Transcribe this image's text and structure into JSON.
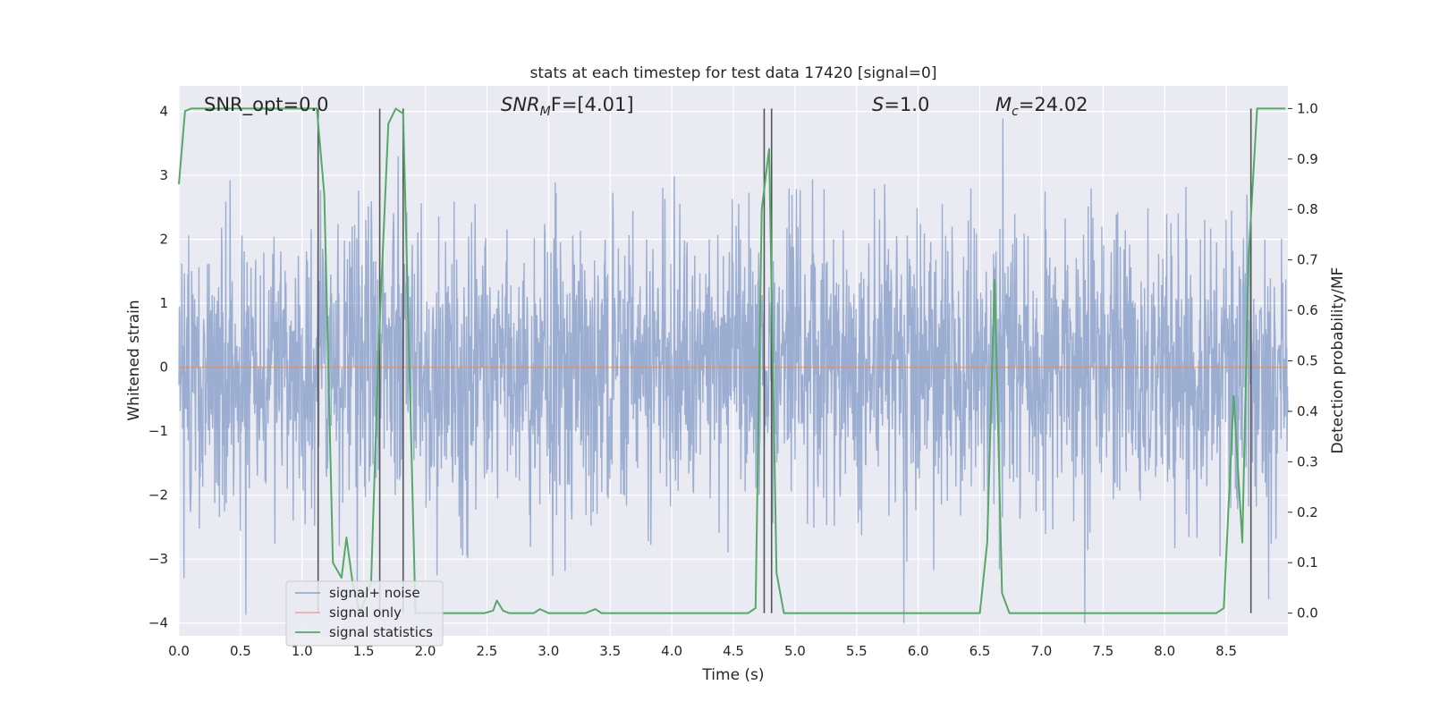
{
  "chart_data": {
    "type": "line",
    "title": "stats at each timestep for test data 17420 [signal=0]",
    "xlabel": "Time (s)",
    "ylabel_left": "Whitened strain",
    "ylabel_right": "Detection probability/MF",
    "xlim": [
      0.0,
      9.0
    ],
    "ylim_left": [
      -4.2,
      4.4
    ],
    "ylim_right": [
      -0.045,
      1.045
    ],
    "x_ticks": [
      "0.0",
      "0.5",
      "1.0",
      "1.5",
      "2.0",
      "2.5",
      "3.0",
      "3.5",
      "4.0",
      "4.5",
      "5.0",
      "5.5",
      "6.0",
      "6.5",
      "7.0",
      "7.5",
      "8.0",
      "8.5"
    ],
    "y_left_ticks": [
      "4",
      "3",
      "2",
      "1",
      "0",
      "−1",
      "−2",
      "−3",
      "−4"
    ],
    "y_right_ticks": [
      "1.0",
      "0.9",
      "0.8",
      "0.7",
      "0.6",
      "0.5",
      "0.4",
      "0.3",
      "0.2",
      "0.1",
      "0.0"
    ],
    "grid": true,
    "legend_position": "lower-left",
    "colors": {
      "background": "#eaeaf2",
      "grid": "#ffffff",
      "signal_noise": "#4c72b0",
      "signal_only": "#dd8452",
      "signal_statistics": "#55a868",
      "vertical_markers": "#555555"
    },
    "annotations": {
      "snr_opt": "SNR_opt=0.0",
      "snr_mf_prefix": "SNR",
      "snr_mf_sub": "M",
      "snr_mf_suffix": "F=[4.01]",
      "s_prefix": "S",
      "s_suffix": "=1.0",
      "mc_prefix": "M",
      "mc_sub": "c",
      "mc_suffix": "=24.02"
    },
    "series": [
      {
        "name": "signal+ noise",
        "axis": "left",
        "style": "dense noise, roughly ±1.5 band with spikes to ±4"
      },
      {
        "name": "signal only",
        "axis": "left",
        "values": "flat at 0"
      },
      {
        "name": "signal statistics",
        "axis": "right",
        "x": [
          0.0,
          0.05,
          0.1,
          1.12,
          1.18,
          1.25,
          1.32,
          1.36,
          1.41,
          1.47,
          1.56,
          1.62,
          1.7,
          1.76,
          1.82,
          1.92,
          2.48,
          2.55,
          2.58,
          2.63,
          2.68,
          2.88,
          2.93,
          3.0,
          3.3,
          3.38,
          3.43,
          3.48,
          4.62,
          4.68,
          4.73,
          4.79,
          4.85,
          4.91,
          4.97,
          6.5,
          6.56,
          6.62,
          6.68,
          6.74,
          6.8,
          8.42,
          8.48,
          8.56,
          8.63,
          8.68,
          8.75,
          8.8,
          8.98
        ],
        "values": [
          0.85,
          0.995,
          1.0,
          1.0,
          0.83,
          0.1,
          0.07,
          0.15,
          0.06,
          0.0,
          0.06,
          0.52,
          0.97,
          1.0,
          0.99,
          0.0,
          0.0,
          0.005,
          0.025,
          0.005,
          0.0,
          0.0,
          0.008,
          0.0,
          0.0,
          0.008,
          0.0,
          0.0,
          0.0,
          0.01,
          0.8,
          0.92,
          0.08,
          0.0,
          0.0,
          0.0,
          0.14,
          0.66,
          0.04,
          0.0,
          0.0,
          0.0,
          0.01,
          0.43,
          0.14,
          0.7,
          1.0,
          1.0,
          1.0
        ]
      }
    ],
    "vertical_lines_x": [
      1.13,
      1.63,
      1.82,
      4.75,
      4.81,
      8.7
    ],
    "legend": [
      "signal+ noise",
      "signal only",
      "signal statistics"
    ]
  }
}
